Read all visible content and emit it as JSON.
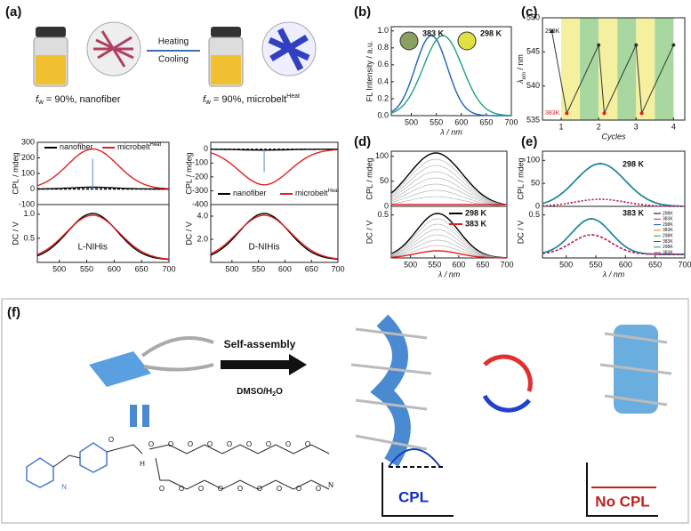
{
  "panel_a": {
    "label": "(a)",
    "heating": "Heating",
    "cooling": "Cooling",
    "caption_left": {
      "f": "f",
      "sub": "w",
      "text": " = 90%, nanofiber"
    },
    "caption_right": {
      "f": "f",
      "sub": "w",
      "text": " = 90%, microbelt",
      "sup": "Heat"
    },
    "plots": [
      {
        "note": "L-NIHis",
        "xlim": [
          460,
          700
        ],
        "xticks": [
          500,
          550,
          600,
          650,
          700
        ],
        "legend": [
          {
            "name": "nanofiber",
            "color": "#000000"
          },
          {
            "name": "microbelt",
            "sup": "Heat",
            "color": "#e02020"
          }
        ],
        "cpl": {
          "ylabel": "CPL / mdeg",
          "ylim": [
            -100,
            300
          ],
          "yticks": [
            -100,
            0,
            100,
            200,
            300
          ]
        },
        "dc": {
          "ylabel": "DC / V",
          "ylim": [
            0,
            1.2
          ],
          "yticks": [
            {
              "value": 0.5,
              "label": "0.5"
            },
            {
              "value": 1,
              "label": "1.0"
            }
          ]
        }
      },
      {
        "note": "D-NIHis",
        "xlim": [
          460,
          700
        ],
        "xticks": [
          500,
          550,
          600,
          650,
          700
        ],
        "legend": [
          {
            "name": "nanofiber",
            "color": "#000000"
          },
          {
            "name": "microbelt",
            "sup": "Heat",
            "color": "#e02020"
          }
        ],
        "cpl": {
          "ylabel": "CPL / mdeg",
          "ylim": [
            -400,
            50
          ],
          "yticks": [
            -400,
            -300,
            -200,
            -100,
            0
          ]
        },
        "dc": {
          "ylabel": "DC / V",
          "ylim": [
            0,
            5
          ],
          "yticks": [
            {
              "value": 2,
              "label": "2.0"
            },
            {
              "value": 4,
              "label": "4.0"
            }
          ]
        }
      }
    ]
  },
  "panel_b": {
    "label": "(b)",
    "ylabel": "FL Intensity / a.u.",
    "xlabel": "λ / nm",
    "xlim": [
      460,
      700
    ],
    "xticks": [
      500,
      550,
      600,
      650,
      700
    ],
    "ylim": [
      0,
      1.05
    ],
    "yticks": [
      {
        "value": 0,
        "label": "0.0"
      },
      {
        "value": 0.2,
        "label": "0.2"
      },
      {
        "value": 0.4,
        "label": "0.4"
      },
      {
        "value": 0.6,
        "label": "0.6"
      },
      {
        "value": 0.8,
        "label": "0.8"
      },
      {
        "value": 1,
        "label": "1.0"
      }
    ],
    "annotations": [
      "383 K",
      "298 K"
    ]
  },
  "panel_c": {
    "label": "(c)",
    "type": "line",
    "xlabel": "Cycles",
    "ylabel": {
      "sym": "λ",
      "sub": "em",
      "text": " / nm"
    },
    "x": [
      0.75,
      1.15,
      2,
      2.15,
      3,
      3.15,
      4
    ],
    "series": [
      {
        "color": "#333333",
        "values": [
          548,
          536,
          546,
          536,
          546,
          536,
          546
        ]
      }
    ],
    "xlim": [
      0.5,
      4.3
    ],
    "xticks": [
      1,
      2,
      3,
      4
    ],
    "ylim": [
      535,
      550
    ],
    "yticks": [
      535,
      540,
      545,
      550
    ],
    "annotations": [
      "298K",
      "383K"
    ]
  },
  "panel_d": {
    "label": "(d)",
    "xlabel": "λ / nm",
    "xlim": [
      460,
      700
    ],
    "xticks": [
      500,
      550,
      600,
      650,
      700
    ],
    "legend": [
      {
        "name": "298 K",
        "color": "#000000"
      },
      {
        "name": "383 K",
        "color": "#e02020"
      }
    ],
    "cpl": {
      "ylabel": "CPL / mdeg",
      "ylim": [
        0,
        110
      ],
      "yticks": [
        0,
        50,
        100
      ]
    },
    "dc": {
      "ylabel": "DC / V",
      "ylim": [
        0,
        0.6
      ],
      "yticks": [
        {
          "value": 0.5,
          "label": "0.5"
        }
      ]
    }
  },
  "panel_e": {
    "label": "(e)",
    "xlabel": "λ / nm",
    "xlim": [
      460,
      700
    ],
    "xticks": [
      500,
      550,
      600,
      650,
      700
    ],
    "annotations": [
      "298 K",
      "383 K"
    ],
    "legend": [
      {
        "name": "298K",
        "color": "#000000"
      },
      {
        "name": "383K",
        "color": "#e02020"
      },
      {
        "name": "298K",
        "color": "#1f4fbf"
      },
      {
        "name": "383K",
        "color": "#e08020"
      },
      {
        "name": "298K",
        "color": "#2a9a3a"
      },
      {
        "name": "383K",
        "color": "#8a2a9a"
      },
      {
        "name": "298K",
        "color": "#1a8aa0"
      },
      {
        "name": "383K",
        "color": "#c02060"
      }
    ],
    "cpl": {
      "ylabel": "CPL / mdeg",
      "ylim": [
        0,
        120
      ],
      "yticks": [
        0,
        50,
        100
      ]
    },
    "dc": {
      "ylabel": "DC / V",
      "ylim": [
        0,
        0.6
      ],
      "yticks": [
        {
          "value": 0.5,
          "label": "0.5"
        }
      ]
    }
  },
  "panel_f": {
    "label": "(f)",
    "step": "Self-assembly",
    "solvent": {
      "a": "DMSO/H",
      "sub": "2",
      "b": "O"
    },
    "cpl": "CPL",
    "no_cpl": "No CPL",
    "atoms": [
      "N",
      "H",
      "O",
      "O",
      "O",
      "O",
      "O",
      "O",
      "O",
      "O",
      "O",
      "O",
      "O",
      "O",
      "O",
      "O",
      "O",
      "O",
      "O",
      "O",
      "O",
      "N"
    ]
  }
}
